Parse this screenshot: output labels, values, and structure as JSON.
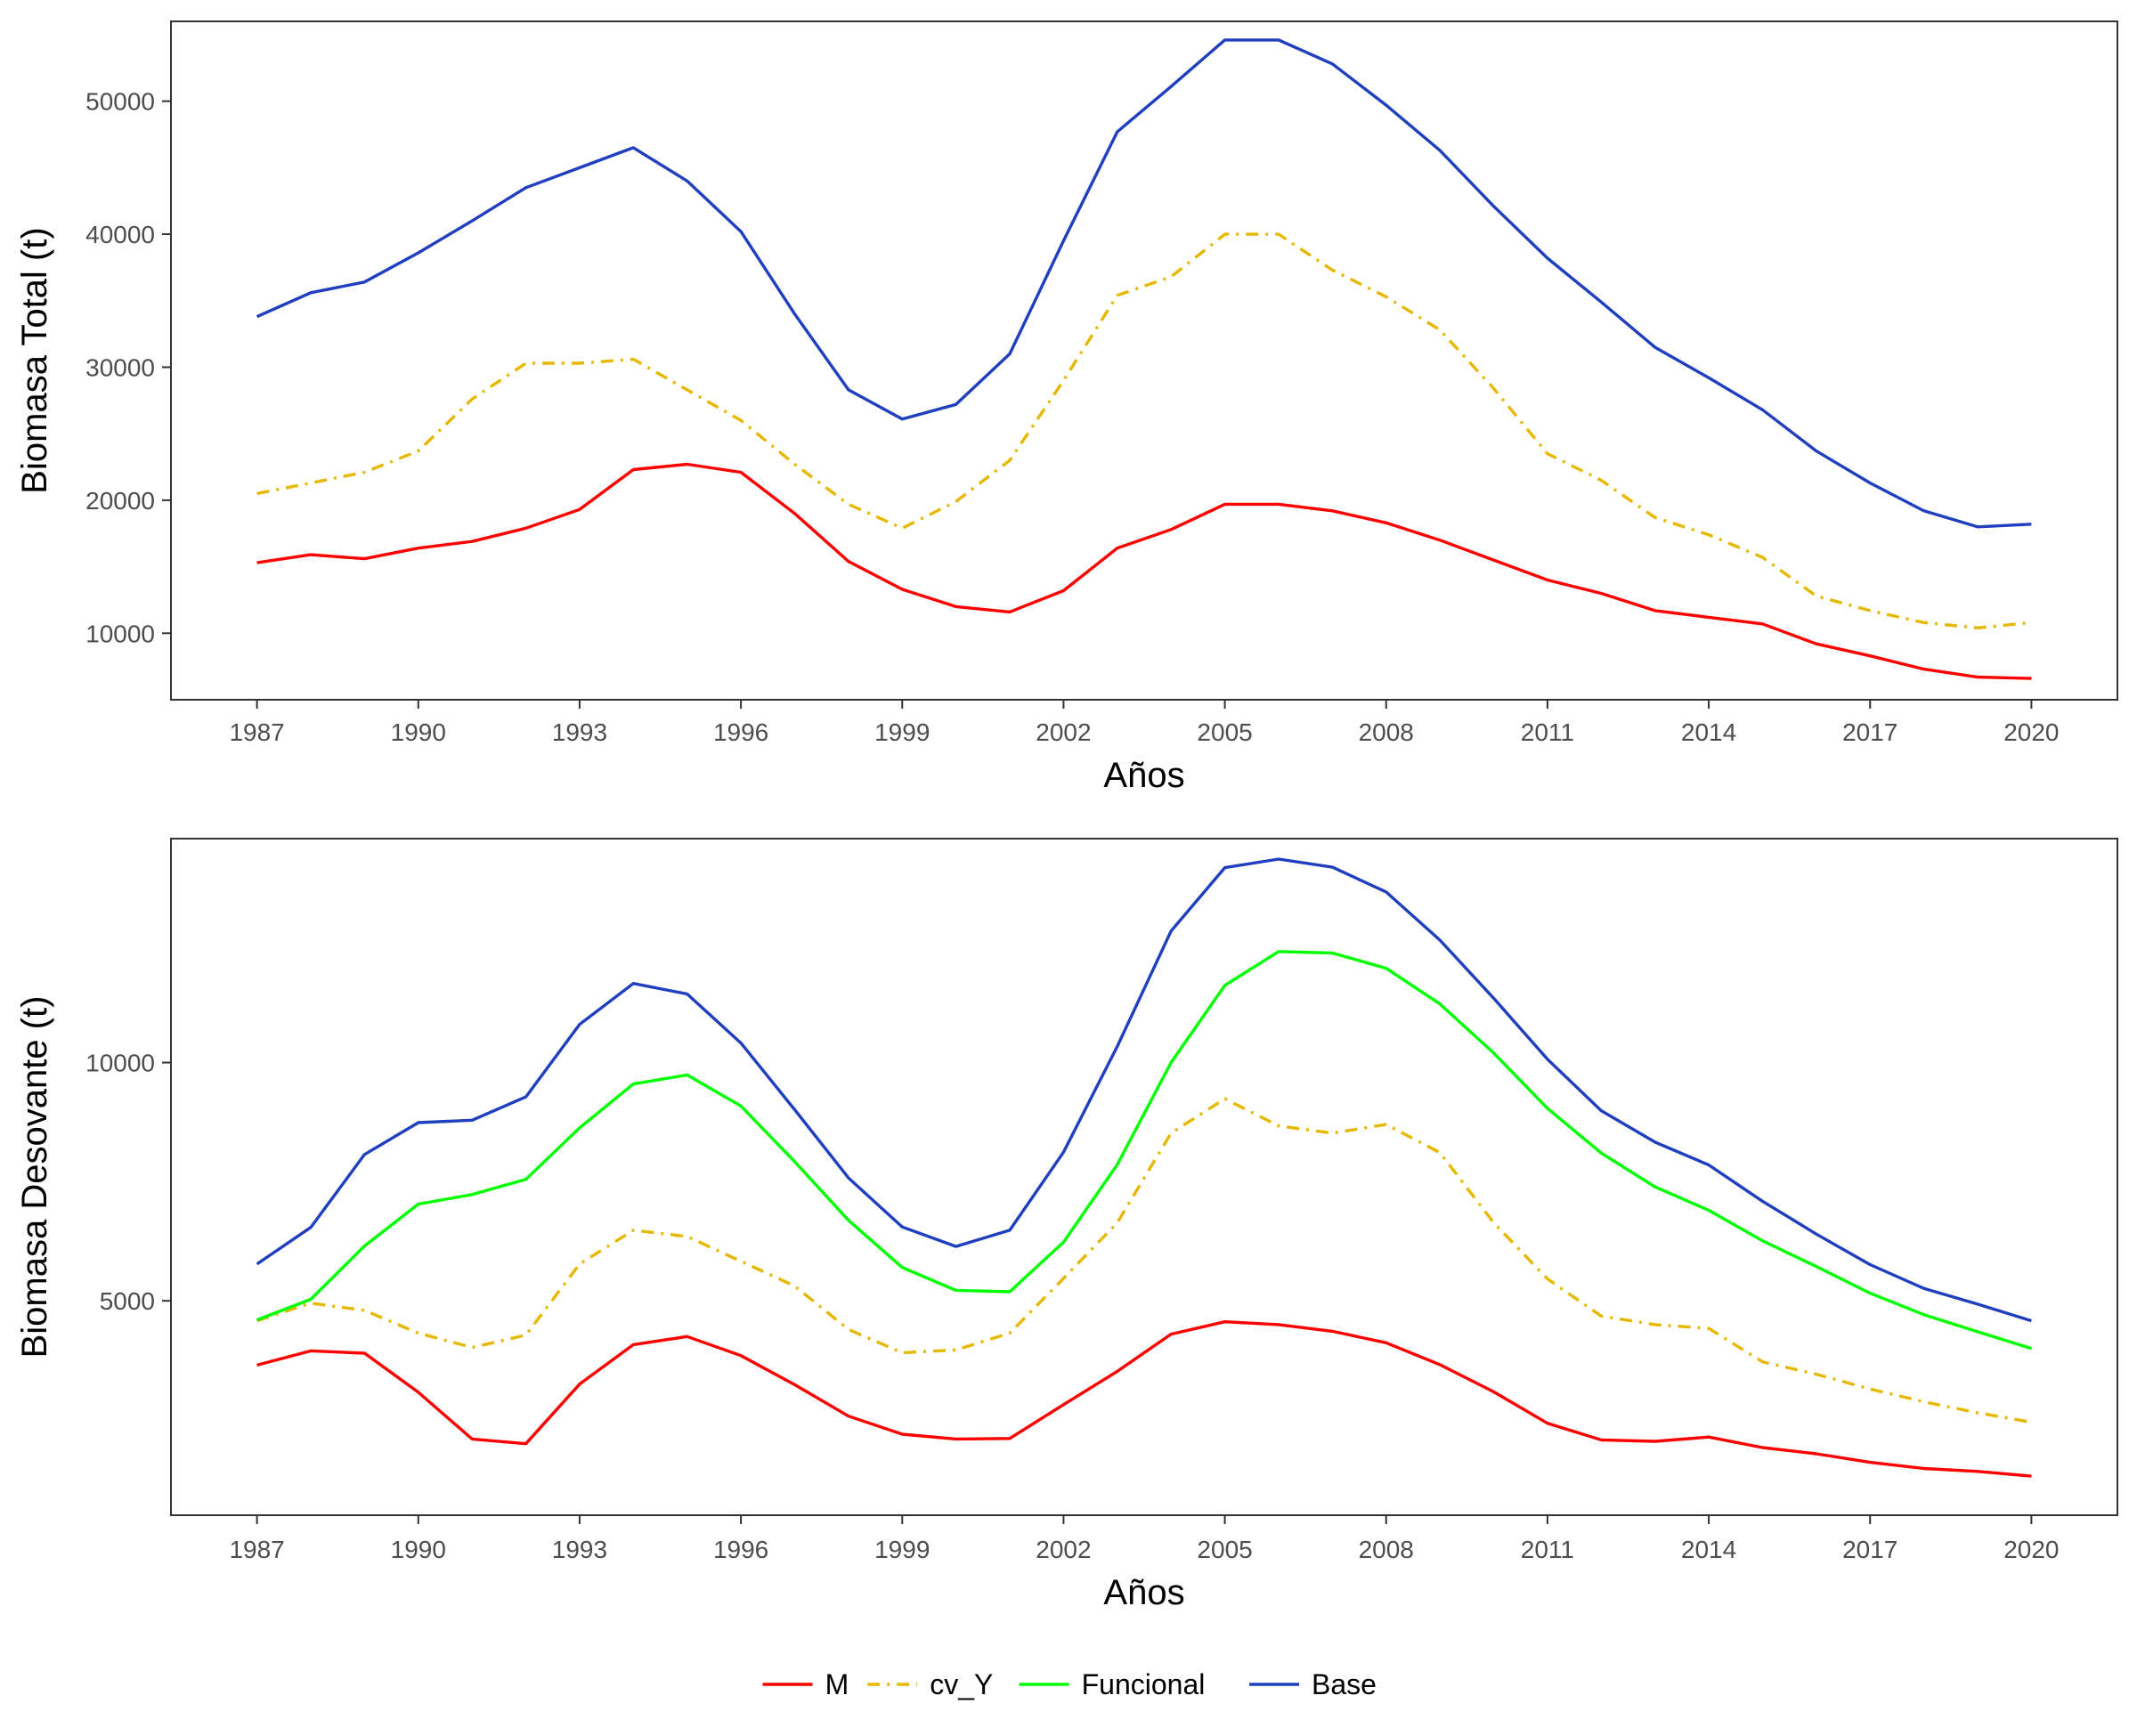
{
  "chart_data": [
    {
      "type": "line",
      "xlabel": "Años",
      "ylabel": "Biomasa Total (t)",
      "x_ticks": [
        1987,
        1990,
        1993,
        1996,
        1999,
        2002,
        2005,
        2008,
        2011,
        2014,
        2017,
        2020
      ],
      "y_ticks": [
        10000,
        20000,
        30000,
        40000,
        50000
      ],
      "xlim": [
        1985.4,
        2021.6
      ],
      "ylim": [
        5000,
        56000
      ],
      "grid": false,
      "x": [
        1987,
        1988,
        1989,
        1990,
        1991,
        1992,
        1993,
        1994,
        1995,
        1996,
        1997,
        1998,
        1999,
        2000,
        2001,
        2002,
        2003,
        2004,
        2005,
        2006,
        2007,
        2008,
        2009,
        2010,
        2011,
        2012,
        2013,
        2014,
        2015,
        2016,
        2017,
        2018,
        2019,
        2020
      ],
      "series": [
        {
          "name": "M",
          "color": "#ff0000",
          "dash": "solid",
          "values": [
            15300,
            15900,
            15600,
            16400,
            16900,
            17900,
            19300,
            22300,
            22700,
            22100,
            19000,
            15400,
            13300,
            12000,
            11600,
            13200,
            16400,
            17800,
            19700,
            19700,
            19200,
            18300,
            17000,
            15500,
            14000,
            13000,
            11700,
            11200,
            10700,
            9200,
            8300,
            7300,
            6700,
            6600
          ]
        },
        {
          "name": "cv_Y",
          "color": "#e6b800",
          "dash": "dashdot",
          "values": [
            20500,
            21300,
            22100,
            23700,
            27600,
            30300,
            30300,
            30600,
            28300,
            26000,
            22700,
            19700,
            17900,
            19900,
            23000,
            29000,
            35400,
            36800,
            40000,
            40000,
            37300,
            35300,
            32800,
            28400,
            23500,
            21500,
            18700,
            17400,
            15700,
            12800,
            11700,
            10800,
            10400,
            10800
          ]
        },
        {
          "name": "Base",
          "color": "#1f3fbf",
          "dash": "solid",
          "values": [
            33800,
            35600,
            36400,
            38600,
            41000,
            43500,
            45000,
            46500,
            44000,
            40200,
            34000,
            28300,
            26100,
            27200,
            31000,
            39500,
            47700,
            51100,
            54600,
            54600,
            52800,
            49700,
            46300,
            42100,
            38200,
            34900,
            31500,
            29200,
            26800,
            23700,
            21300,
            19200,
            18000,
            18200
          ]
        }
      ]
    },
    {
      "type": "line",
      "xlabel": "Años",
      "ylabel": "Biomasa Desovante (t)",
      "x_ticks": [
        1987,
        1990,
        1993,
        1996,
        1999,
        2002,
        2005,
        2008,
        2011,
        2014,
        2017,
        2020
      ],
      "y_ticks": [
        5000,
        10000
      ],
      "xlim": [
        1985.4,
        2021.6
      ],
      "ylim": [
        500,
        14700
      ],
      "grid": false,
      "x": [
        1987,
        1988,
        1989,
        1990,
        1991,
        1992,
        1993,
        1994,
        1995,
        1996,
        1997,
        1998,
        1999,
        2000,
        2001,
        2002,
        2003,
        2004,
        2005,
        2006,
        2007,
        2008,
        2009,
        2010,
        2011,
        2012,
        2013,
        2014,
        2015,
        2016,
        2017,
        2018,
        2019,
        2020
      ],
      "series": [
        {
          "name": "M",
          "color": "#ff0000",
          "dash": "solid",
          "values": [
            3650,
            3950,
            3900,
            3080,
            2100,
            2000,
            3250,
            4080,
            4250,
            3850,
            3240,
            2580,
            2200,
            2100,
            2110,
            2820,
            3520,
            4300,
            4560,
            4500,
            4360,
            4120,
            3660,
            3090,
            2430,
            2080,
            2050,
            2140,
            1920,
            1790,
            1610,
            1480,
            1420,
            1320
          ]
        },
        {
          "name": "cv_Y",
          "color": "#e6b800",
          "dash": "dashdot",
          "values": [
            4580,
            4950,
            4800,
            4320,
            4020,
            4280,
            5770,
            6480,
            6350,
            5830,
            5310,
            4400,
            3910,
            3970,
            4320,
            5470,
            6640,
            8520,
            9240,
            8670,
            8520,
            8700,
            8110,
            6640,
            5460,
            4680,
            4500,
            4420,
            3720,
            3460,
            3150,
            2880,
            2650,
            2450
          ]
        },
        {
          "name": "Funcional",
          "color": "#00ff00",
          "dash": "solid",
          "values": [
            4600,
            5030,
            6150,
            7030,
            7230,
            7550,
            8630,
            9550,
            9740,
            9090,
            7920,
            6690,
            5700,
            5220,
            5190,
            6230,
            7860,
            10000,
            11620,
            12330,
            12300,
            11980,
            11230,
            10200,
            9040,
            8100,
            7390,
            6900,
            6260,
            5720,
            5160,
            4710,
            4350,
            4000
          ]
        },
        {
          "name": "Base",
          "color": "#1f3fbf",
          "dash": "solid",
          "values": [
            5770,
            6540,
            8070,
            8740,
            8790,
            9280,
            10800,
            11660,
            11440,
            10410,
            9010,
            7580,
            6550,
            6140,
            6480,
            8120,
            10340,
            12760,
            14090,
            14270,
            14100,
            13580,
            12570,
            11350,
            10070,
            8990,
            8330,
            7850,
            7090,
            6400,
            5760,
            5260,
            4930,
            4580
          ]
        }
      ]
    }
  ],
  "legend": {
    "placement": "bottom",
    "items": [
      {
        "label": "M",
        "color": "#ff0000",
        "dash": "solid"
      },
      {
        "label": "cv_Y",
        "color": "#e6b800",
        "dash": "dashdot"
      },
      {
        "label": "Funcional",
        "color": "#00ff00",
        "dash": "solid"
      },
      {
        "label": "Base",
        "color": "#1f3fbf",
        "dash": "solid"
      }
    ]
  }
}
